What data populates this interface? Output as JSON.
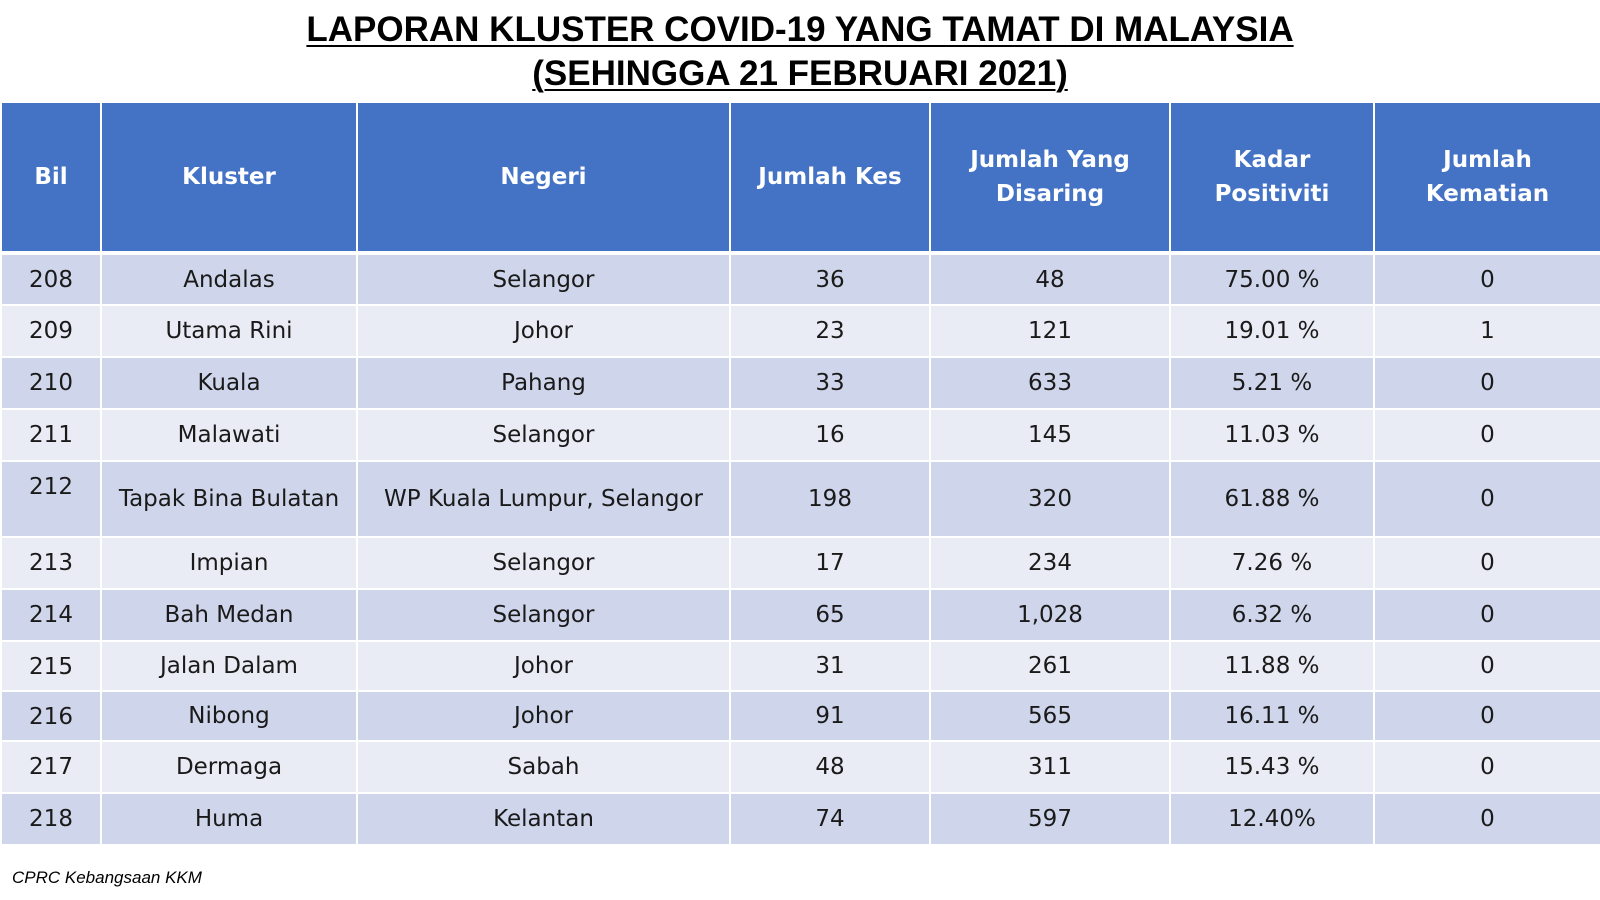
{
  "title": {
    "line1": "LAPORAN KLUSTER COVID-19 YANG TAMAT DI MALAYSIA",
    "line2": "(SEHINGGA  21 FEBRUARI 2021)"
  },
  "table": {
    "headers": [
      "Bil",
      "Kluster",
      "Negeri",
      "Jumlah Kes",
      "Jumlah Yang Disaring",
      "Kadar Positiviti",
      "Jumlah Kematian"
    ],
    "rows": [
      [
        "208",
        "Andalas",
        "Selangor",
        "36",
        "48",
        "75.00 %",
        "0"
      ],
      [
        "209",
        "Utama Rini",
        "Johor",
        "23",
        "121",
        "19.01 %",
        "1"
      ],
      [
        "210",
        "Kuala",
        "Pahang",
        "33",
        "633",
        "5.21 %",
        "0"
      ],
      [
        "211",
        "Malawati",
        "Selangor",
        "16",
        "145",
        "11.03 %",
        "0"
      ],
      [
        "212",
        "Tapak Bina Bulatan",
        "WP Kuala Lumpur, Selangor",
        "198",
        "320",
        "61.88 %",
        "0"
      ],
      [
        "213",
        "Impian",
        "Selangor",
        "17",
        "234",
        "7.26 %",
        "0"
      ],
      [
        "214",
        "Bah Medan",
        "Selangor",
        "65",
        "1,028",
        "6.32 %",
        "0"
      ],
      [
        "215",
        "Jalan Dalam",
        "Johor",
        "31",
        "261",
        "11.88 %",
        "0"
      ],
      [
        "216",
        "Nibong",
        "Johor",
        "91",
        "565",
        "16.11 %",
        "0"
      ],
      [
        "217",
        "Dermaga",
        "Sabah",
        "48",
        "311",
        "15.43 %",
        "0"
      ],
      [
        "218",
        "Huma",
        "Kelantan",
        "74",
        "597",
        "12.40%",
        "0"
      ]
    ]
  },
  "source": "CPRC Kebangsaan KKM",
  "colors": {
    "header_bg": "#4472c4",
    "row_dark": "#cfd5ea",
    "row_light": "#e9ebf5"
  }
}
